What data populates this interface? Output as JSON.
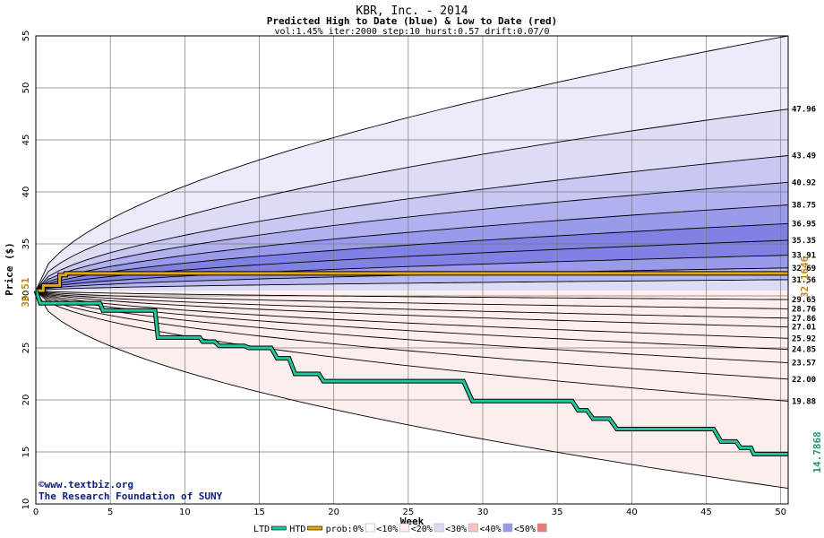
{
  "chart_data": {
    "type": "area",
    "title": "KBR, Inc. - 2014",
    "subtitle": "Predicted High to Date (blue) &  Low to Date (red)",
    "params": "vol:1.45% iter:2000 step:10 hurst:0.57 drift:0.07/0",
    "xlabel": "Week",
    "ylabel": "Price ($)",
    "xlim": [
      0,
      50.5
    ],
    "ylim": [
      10,
      55
    ],
    "xticks": [
      0,
      5,
      10,
      15,
      20,
      25,
      30,
      35,
      40,
      45,
      50
    ],
    "yticks": [
      10,
      15,
      20,
      25,
      30,
      35,
      40,
      45,
      50,
      55
    ],
    "start_price_label": "30.51",
    "start_price": 30.51,
    "grid": true,
    "right_labels": [
      "47.96",
      "43.49",
      "40.92",
      "38.75",
      "36.95",
      "35.35",
      "33.91",
      "32.69",
      "31.56",
      "29.65",
      "28.76",
      "27.86",
      "27.01",
      "25.92",
      "24.85",
      "23.57",
      "22.00",
      "19.88"
    ],
    "high_quantiles": [
      {
        "name": "max",
        "end": 55,
        "color": "#ebebfb"
      },
      {
        "name": "q1",
        "end": 47.96,
        "color": "#dcdcf7"
      },
      {
        "name": "q2",
        "end": 43.49,
        "color": "#c8c8f3"
      },
      {
        "name": "q3",
        "end": 40.92,
        "color": "#b1b1ef"
      },
      {
        "name": "q4",
        "end": 38.75,
        "color": "#9a9aea"
      },
      {
        "name": "q5",
        "end": 36.95,
        "color": "#8181e4"
      },
      {
        "name": "q6",
        "end": 35.35,
        "color": "#8181e4"
      },
      {
        "name": "q7",
        "end": 33.91,
        "color": "#9a9aea"
      },
      {
        "name": "q8",
        "end": 32.69,
        "color": "#b8b8f0"
      },
      {
        "name": "q9",
        "end": 31.56,
        "color": "#dcdcf7"
      }
    ],
    "low_quantiles": [
      {
        "name": "q9",
        "end": 29.65,
        "color": "#fbdcdc"
      },
      {
        "name": "q8",
        "end": 28.76,
        "color": "#f7c1c1"
      },
      {
        "name": "q7",
        "end": 27.86,
        "color": "#f3a5a5"
      },
      {
        "name": "q6",
        "end": 27.01,
        "color": "#ee8a8a"
      },
      {
        "name": "q5",
        "end": 25.92,
        "color": "#ec7a7a"
      },
      {
        "name": "q4",
        "end": 24.85,
        "color": "#ef8e8e"
      },
      {
        "name": "q3",
        "end": 23.57,
        "color": "#f3a9a9"
      },
      {
        "name": "q2",
        "end": 22.0,
        "color": "#f7c7c7"
      },
      {
        "name": "q1",
        "end": 19.88,
        "color": "#fadcdc"
      },
      {
        "name": "min",
        "end": 11.5,
        "color": "#fdeeee"
      }
    ],
    "htd_series": {
      "name": "HTD",
      "color": "#e0a800",
      "end_label": "32.1646",
      "points": [
        [
          0,
          30.51
        ],
        [
          0.5,
          30.51
        ],
        [
          0.5,
          31.0
        ],
        [
          1.6,
          31.0
        ],
        [
          1.6,
          32.0
        ],
        [
          2,
          32.0
        ],
        [
          2,
          32.16
        ],
        [
          50.5,
          32.16
        ]
      ]
    },
    "ltd_series": {
      "name": "LTD",
      "color": "#1fc89a",
      "end_label": "14.7868",
      "points": [
        [
          0,
          30.51
        ],
        [
          0.3,
          29.3
        ],
        [
          4.3,
          29.3
        ],
        [
          4.5,
          28.6
        ],
        [
          8,
          28.6
        ],
        [
          8.2,
          26.0
        ],
        [
          11,
          26.0
        ],
        [
          11.2,
          25.6
        ],
        [
          12,
          25.6
        ],
        [
          12.3,
          25.2
        ],
        [
          14,
          25.2
        ],
        [
          14.3,
          25.0
        ],
        [
          15.8,
          25.0
        ],
        [
          16.2,
          24.0
        ],
        [
          17,
          24.0
        ],
        [
          17.4,
          22.5
        ],
        [
          19,
          22.5
        ],
        [
          19.3,
          21.8
        ],
        [
          28.7,
          21.8
        ],
        [
          29.3,
          19.9
        ],
        [
          36,
          19.9
        ],
        [
          36.4,
          19.0
        ],
        [
          37,
          19.0
        ],
        [
          37.4,
          18.2
        ],
        [
          38.5,
          18.2
        ],
        [
          39,
          17.2
        ],
        [
          45.5,
          17.2
        ],
        [
          46,
          16.0
        ],
        [
          47,
          16.0
        ],
        [
          47.3,
          15.4
        ],
        [
          48,
          15.4
        ],
        [
          48.2,
          14.79
        ],
        [
          50.5,
          14.79
        ]
      ]
    },
    "curve_shape_power": 0.55
  },
  "legend": {
    "items": [
      {
        "label": "LTD",
        "swatch": "#1fc89a",
        "kind": "line"
      },
      {
        "label": "HTD",
        "swatch": "#e0a800",
        "kind": "line"
      },
      {
        "label": "prob:0%",
        "swatch": "#ffffff",
        "kind": "box"
      },
      {
        "label": "<10%",
        "swatch": "#fdeeee",
        "kind": "box"
      },
      {
        "label": "<20%",
        "swatch": "#dcdcf7",
        "kind": "box"
      },
      {
        "label": "<30%",
        "swatch": "#f7c1c1",
        "kind": "box"
      },
      {
        "label": "<40%",
        "swatch": "#9a9aea",
        "kind": "box"
      },
      {
        "label": "<50%",
        "swatch": "#ec7a7a",
        "kind": "box"
      }
    ]
  },
  "credit": {
    "line1": "©www.textbiz.org",
    "line2": "The Research Foundation of SUNY"
  }
}
